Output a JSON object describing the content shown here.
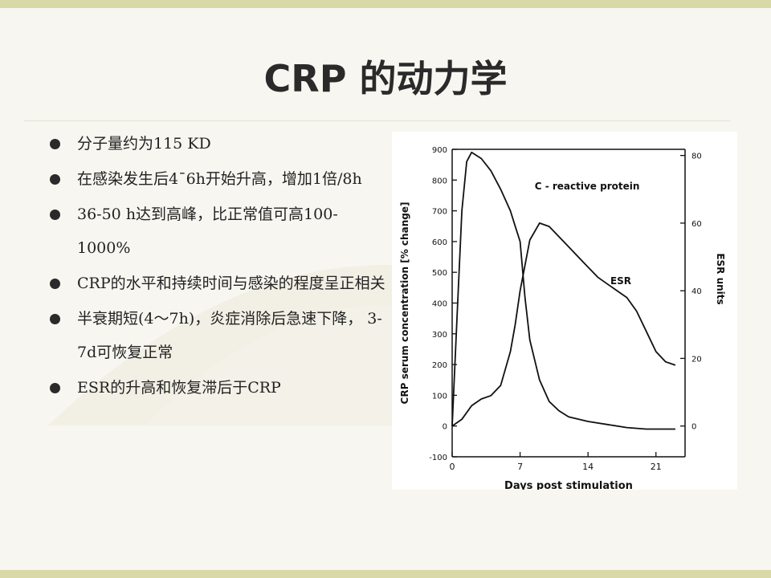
{
  "slide": {
    "title": "CRP 的动力学",
    "bullets": [
      "分子量约为115 KD",
      "在感染发生后4¯6h开始升高，增加1倍/8h",
      "36-50 h达到高峰，比正常值可高100-1000%",
      "CRP的水平和持续时间与感染的程度呈正相关",
      "半衰期短(4～7h)，炎症消除后急速下降，  3-7d可恢复正常",
      "ESR的升高和恢复滞后于CRP"
    ]
  },
  "chart_data": {
    "type": "line",
    "title": "",
    "xlabel": "Days post stimulation",
    "ylabel_left": "CRP serum concentration [% change]",
    "ylabel_right": "ESR units",
    "xlim": [
      0,
      24
    ],
    "x_ticks": [
      "0",
      "7",
      "14",
      "21"
    ],
    "ylim_left": [
      -100,
      900
    ],
    "y_ticks_left": [
      "-100",
      "0",
      "100",
      "200",
      "300",
      "400",
      "500",
      "600",
      "700",
      "800",
      "900"
    ],
    "ylim_right": [
      0,
      80
    ],
    "y_ticks_right": [
      "0",
      "20",
      "40",
      "60",
      "80"
    ],
    "series": [
      {
        "name": "C - reactive protein",
        "axis": "left",
        "color": "#111111",
        "x": [
          0,
          0.5,
          1,
          1.5,
          2,
          3,
          4,
          5,
          6,
          6.5,
          7,
          7.5,
          8,
          9,
          10,
          11,
          12,
          14,
          16,
          18,
          20,
          22,
          23
        ],
        "y": [
          0,
          350,
          700,
          860,
          890,
          870,
          830,
          770,
          700,
          650,
          600,
          420,
          280,
          150,
          80,
          50,
          30,
          15,
          5,
          -5,
          -10,
          -10,
          -10
        ]
      },
      {
        "name": "ESR",
        "axis": "right",
        "color": "#111111",
        "x": [
          0,
          1,
          2,
          3,
          4,
          5,
          6,
          6.5,
          7,
          8,
          9,
          10,
          11,
          12,
          13,
          14,
          15,
          16,
          17,
          18,
          19,
          20,
          21,
          22,
          23
        ],
        "y": [
          0,
          2,
          6,
          8,
          9,
          12,
          22,
          30,
          40,
          55,
          60,
          59,
          56,
          53,
          50,
          47,
          44,
          42,
          40,
          38,
          34,
          28,
          22,
          19,
          18
        ]
      }
    ]
  }
}
